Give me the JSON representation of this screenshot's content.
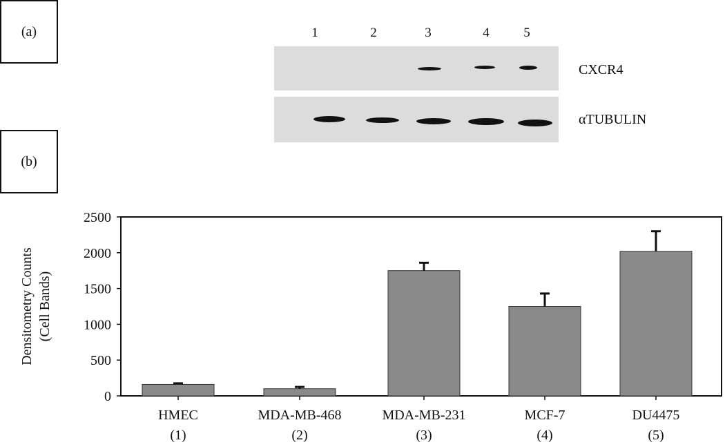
{
  "panels": {
    "a": "(a)",
    "b": "(b)"
  },
  "blot": {
    "lanes": [
      "1",
      "2",
      "3",
      "4",
      "5"
    ],
    "cxcr4_label": "CXCR4",
    "tubulin_label": "αTUBULIN"
  },
  "chart_data": {
    "type": "bar",
    "categories": [
      "HMEC",
      "MDA-MB-468",
      "MDA-MB-231",
      "MCF-7",
      "DU4475"
    ],
    "category_numbers": [
      "(1)",
      "(2)",
      "(3)",
      "(4)",
      "(5)"
    ],
    "values": [
      160,
      100,
      1750,
      1250,
      2020
    ],
    "error_upper": [
      175,
      125,
      1860,
      1430,
      2300
    ],
    "ylabel": [
      "Densitometry Counts",
      "(Cell Bands)"
    ],
    "ylim": [
      0,
      2500
    ],
    "yticks": [
      0,
      500,
      1000,
      1500,
      2000,
      2500
    ],
    "bar_color": "#8a8a8a",
    "grid": false
  }
}
